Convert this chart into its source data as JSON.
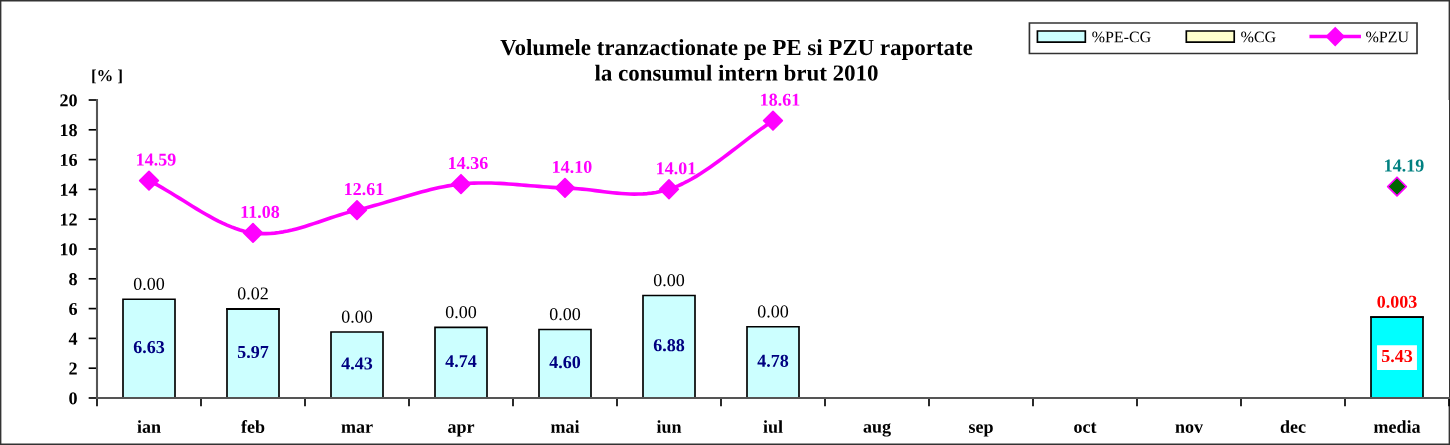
{
  "chart_data": {
    "type": "bar",
    "title": "Volumele tranzactionate pe PE si PZU raportate\nla consumul intern brut 2010",
    "ylabel": "[% ]",
    "categories": [
      "ian",
      "feb",
      "mar",
      "apr",
      "mai",
      "iun",
      "iul",
      "aug",
      "sep",
      "oct",
      "nov",
      "dec",
      "media"
    ],
    "stacked": true,
    "series": [
      {
        "name": "%PE-CG",
        "color": "#ccffff",
        "colors": [
          "#ccffff",
          "#ccffff",
          "#ccffff",
          "#ccffff",
          "#ccffff",
          "#ccffff",
          "#ccffff",
          "#ccffff",
          "#ccffff",
          "#ccffff",
          "#ccffff",
          "#ccffff",
          "#00ffff"
        ],
        "values": [
          6.63,
          5.97,
          4.43,
          4.74,
          4.6,
          6.88,
          4.78,
          null,
          null,
          null,
          null,
          null,
          5.43
        ],
        "value_labels": [
          "6.63",
          "5.97",
          "4.43",
          "4.74",
          "4.60",
          "6.88",
          "4.78",
          null,
          null,
          null,
          null,
          null,
          "5.43"
        ]
      },
      {
        "name": "%CG",
        "color": "#ffffcc",
        "values": [
          0.0,
          0.02,
          0.0,
          0.0,
          0.0,
          0.0,
          0.0,
          null,
          null,
          null,
          null,
          null,
          0.003
        ],
        "value_labels": [
          "0.00",
          "0.02",
          "0.00",
          "0.00",
          "0.00",
          "0.00",
          "0.00",
          null,
          null,
          null,
          null,
          null,
          "0.003"
        ]
      },
      {
        "name": "%PZU",
        "type": "line",
        "color": "#ff00ff",
        "colors": [
          "#ff00ff",
          "#ff00ff",
          "#ff00ff",
          "#ff00ff",
          "#ff00ff",
          "#ff00ff",
          "#ff00ff",
          "#ff00ff",
          "#ff00ff",
          "#ff00ff",
          "#ff00ff",
          "#ff00ff",
          "#006600"
        ],
        "values": [
          14.59,
          11.08,
          12.61,
          14.36,
          14.1,
          14.01,
          18.61,
          null,
          null,
          null,
          null,
          null,
          14.19
        ],
        "value_labels": [
          "14.59",
          "11.08",
          "12.61",
          "14.36",
          "14.10",
          "14.01",
          "18.61",
          null,
          null,
          null,
          null,
          null,
          "14.19"
        ]
      }
    ],
    "ylim": [
      0,
      20
    ],
    "yticks": [
      0,
      2,
      4,
      6,
      8,
      10,
      12,
      14,
      16,
      18,
      20
    ],
    "grid": false,
    "legend": "top right",
    "marker": "diamond",
    "line_style": "solid"
  }
}
